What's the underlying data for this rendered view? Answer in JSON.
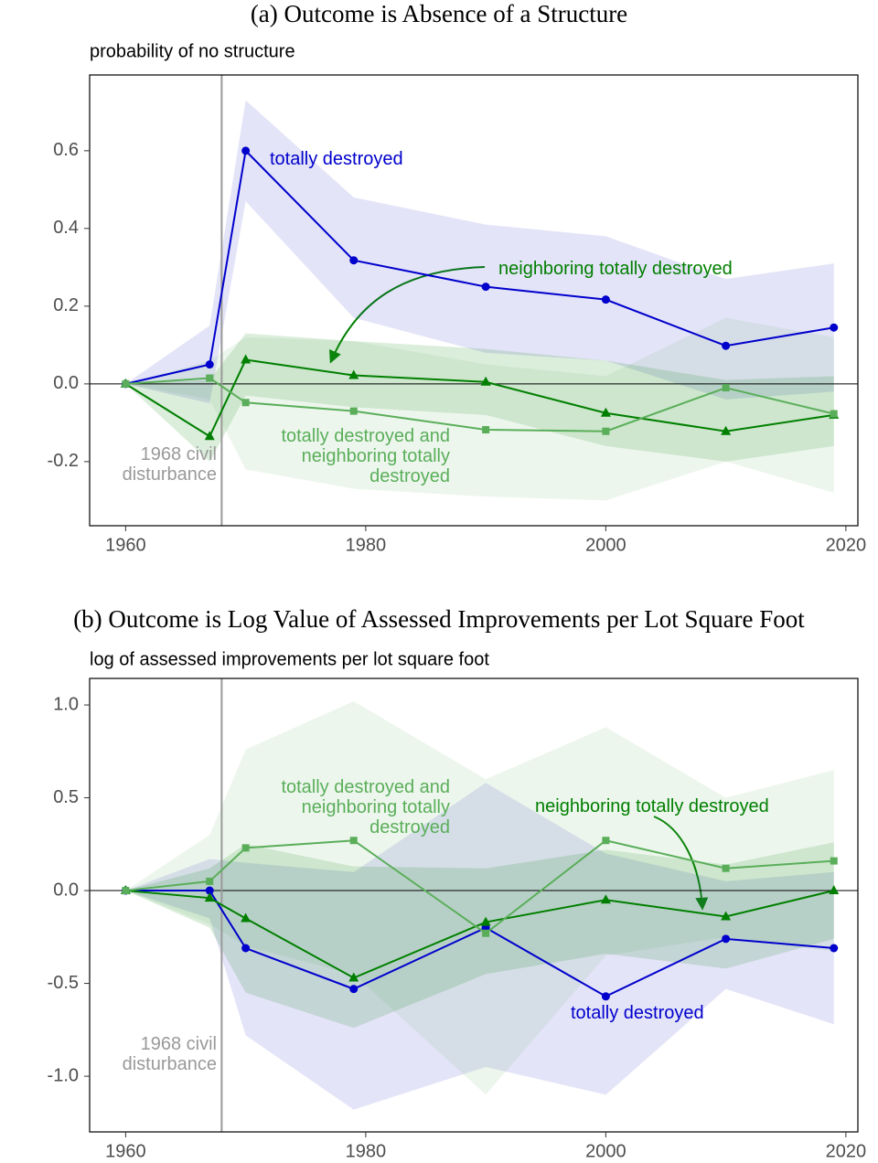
{
  "chart_data": [
    {
      "type": "line",
      "title": "(a) Outcome is Absence of a Structure",
      "y_label": "probability of no structure",
      "x": [
        1960,
        1967,
        1970,
        1979,
        1990,
        2000,
        2010,
        2019
      ],
      "xlim": [
        1957,
        2021
      ],
      "xticks": [
        1960,
        1980,
        2000,
        2020
      ],
      "ylim": [
        -0.365,
        0.795
      ],
      "yticks": [
        -0.2,
        {
          "value": 0,
          "label": "0.0"
        },
        0.2,
        0.4,
        0.6
      ],
      "hline": 0,
      "event": {
        "x": 1968,
        "label": "1968 civil disturbance"
      },
      "series": [
        {
          "name": "totally destroyed",
          "color": "#0000cc",
          "band_color": "#3333cc22",
          "marker": "circle",
          "values": [
            0,
            0.05,
            0.6,
            0.318,
            0.25,
            0.217,
            0.098,
            0.145
          ],
          "upper": [
            0,
            0.15,
            0.73,
            0.48,
            0.41,
            0.38,
            0.27,
            0.31
          ],
          "lower": [
            0,
            -0.05,
            0.47,
            0.17,
            0.08,
            0.06,
            -0.04,
            -0.02
          ]
        },
        {
          "name": "neighboring totally destroyed",
          "color": "#007f00",
          "band_color": "#00800024",
          "marker": "triangle",
          "values": [
            0,
            -0.135,
            0.062,
            0.022,
            0.005,
            -0.075,
            -0.122,
            -0.08
          ],
          "upper": [
            0,
            0.01,
            0.13,
            0.11,
            0.09,
            0.06,
            0.01,
            0.02
          ],
          "lower": [
            0,
            -0.2,
            -0.03,
            -0.06,
            -0.08,
            -0.16,
            -0.2,
            -0.16
          ]
        },
        {
          "name": "totally destroyed and neighboring totally destroyed",
          "color": "#5aae5a",
          "band_color": "#5aae5a1c",
          "marker": "square",
          "values": [
            0,
            0.015,
            -0.048,
            -0.07,
            -0.118,
            -0.122,
            -0.01,
            -0.077
          ],
          "upper": [
            0,
            0.06,
            0.12,
            0.11,
            0.05,
            0.02,
            0.17,
            0.12
          ],
          "lower": [
            0,
            -0.04,
            -0.22,
            -0.27,
            -0.29,
            -0.3,
            -0.2,
            -0.28
          ]
        }
      ]
    },
    {
      "type": "line",
      "title": "(b) Outcome is Log Value of Assessed Improvements per Lot Square Foot",
      "y_label": "log of assessed improvements per lot square foot",
      "x": [
        1960,
        1967,
        1970,
        1979,
        1990,
        2000,
        2010,
        2019
      ],
      "xlim": [
        1957,
        2021
      ],
      "xticks": [
        1960,
        1980,
        2000,
        2020
      ],
      "ylim": [
        -1.3,
        1.143
      ],
      "yticks": [
        {
          "value": -1,
          "label": "-1.0"
        },
        -0.5,
        {
          "value": 0,
          "label": "0.0"
        },
        0.5,
        {
          "value": 1,
          "label": "1.0"
        }
      ],
      "hline": 0,
      "event": {
        "x": 1968,
        "label": "1968 civil disturbance"
      },
      "series": [
        {
          "name": "totally destroyed",
          "color": "#0000cc",
          "band_color": "#3333cc22",
          "marker": "circle",
          "values": [
            0,
            0,
            -0.31,
            -0.53,
            -0.2,
            -0.57,
            -0.26,
            -0.31
          ],
          "upper": [
            0,
            0.17,
            0.15,
            0.1,
            0.58,
            0.2,
            0.05,
            0.1
          ],
          "lower": [
            0,
            -0.15,
            -0.78,
            -1.18,
            -0.95,
            -1.1,
            -0.53,
            -0.72
          ]
        },
        {
          "name": "neighboring totally destroyed",
          "color": "#007f00",
          "band_color": "#00800024",
          "marker": "triangle",
          "values": [
            0,
            -0.04,
            -0.15,
            -0.47,
            -0.17,
            -0.05,
            -0.14,
            0
          ],
          "upper": [
            0,
            0.12,
            0.25,
            0.13,
            0.12,
            0.22,
            0.14,
            0.26
          ],
          "lower": [
            0,
            -0.2,
            -0.55,
            -0.74,
            -0.45,
            -0.34,
            -0.42,
            -0.26
          ]
        },
        {
          "name": "totally destroyed and neighboring totally destroyed",
          "color": "#5aae5a",
          "band_color": "#5aae5a1c",
          "marker": "square",
          "values": [
            0,
            0.05,
            0.23,
            0.27,
            -0.23,
            0.27,
            0.12,
            0.16
          ],
          "upper": [
            0,
            0.3,
            0.76,
            1.02,
            0.6,
            0.88,
            0.5,
            0.65
          ],
          "lower": [
            0,
            -0.18,
            -0.3,
            -0.45,
            -1.1,
            -0.35,
            -0.25,
            -0.33
          ]
        }
      ]
    }
  ]
}
